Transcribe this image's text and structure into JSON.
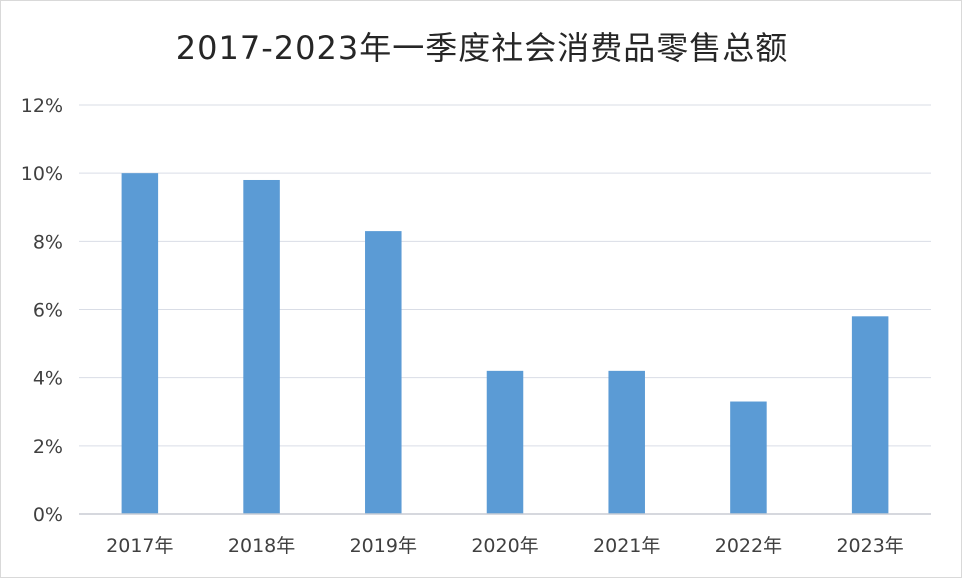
{
  "chart_data": {
    "type": "bar",
    "title": "2017-2023年一季度社会消费品零售总额",
    "categories": [
      "2017年",
      "2018年",
      "2019年",
      "2020年",
      "2021年",
      "2022年",
      "2023年"
    ],
    "values": [
      10.0,
      9.8,
      8.3,
      4.2,
      4.2,
      3.3,
      5.8
    ],
    "ylim": [
      0,
      12
    ],
    "yticks": [
      0,
      2,
      4,
      6,
      8,
      10,
      12
    ],
    "ytick_labels": [
      "0%",
      "2%",
      "4%",
      "6%",
      "8%",
      "10%",
      "12%"
    ],
    "xlabel": "",
    "ylabel": "",
    "grid": true,
    "legend": "none",
    "bar_color": "#5b9bd5"
  }
}
